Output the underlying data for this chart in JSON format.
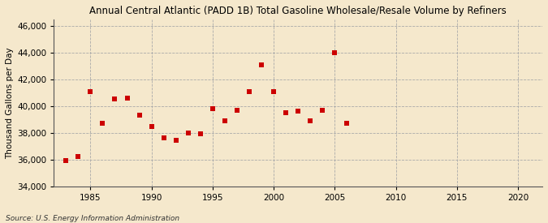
{
  "title": "Annual Central Atlantic (PADD 1B) Total Gasoline Wholesale/Resale Volume by Refiners",
  "ylabel": "Thousand Gallons per Day",
  "source": "Source: U.S. Energy Information Administration",
  "background_color": "#f5e8cc",
  "plot_background_color": "#f5e8cc",
  "marker_color": "#cc0000",
  "marker": "s",
  "marker_size": 5,
  "xlim": [
    1982,
    2022
  ],
  "ylim": [
    34000,
    46500
  ],
  "xticks": [
    1985,
    1990,
    1995,
    2000,
    2005,
    2010,
    2015,
    2020
  ],
  "yticks": [
    34000,
    36000,
    38000,
    40000,
    42000,
    44000,
    46000
  ],
  "data": {
    "1983": 35950,
    "1984": 36250,
    "1985": 41100,
    "1986": 38700,
    "1987": 40550,
    "1988": 40600,
    "1989": 39300,
    "1990": 38500,
    "1991": 37600,
    "1992": 37450,
    "1993": 38000,
    "1994": 37950,
    "1995": 39800,
    "1996": 38900,
    "1997": 39700,
    "1998": 41100,
    "1999": 43100,
    "2000": 41100,
    "2001": 39500,
    "2002": 39650,
    "2003": 38900,
    "2004": 39700,
    "2005": 44000,
    "2006": 38700
  }
}
